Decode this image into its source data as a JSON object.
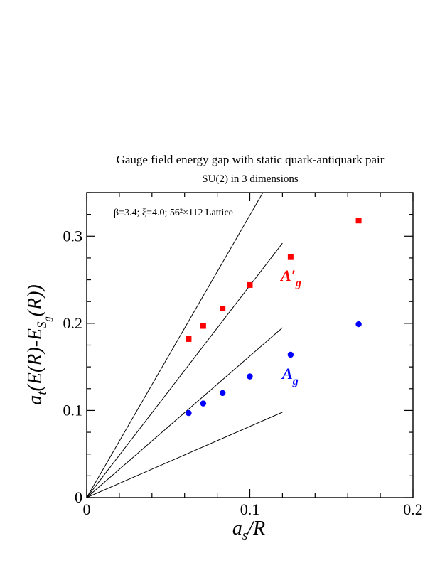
{
  "chart_data": {
    "type": "scatter",
    "title": "Gauge field energy gap with static quark-antiquark pair",
    "subtitle": "SU(2) in 3 dimensions",
    "annotation": "β=3.4;  ξ=4.0; 56²×112 Lattice",
    "xlabel": "a_s/R",
    "ylabel": "a_t(E(R)-E_{S_g}(R))",
    "xlim": [
      0,
      0.2
    ],
    "ylim": [
      0,
      0.35
    ],
    "x_ticks": [
      "0",
      "0.1",
      "0.2"
    ],
    "x_tick_values": [
      0,
      0.1,
      0.2
    ],
    "y_ticks": [
      "0",
      "0.1",
      "0.2",
      "0.3"
    ],
    "y_tick_values": [
      0,
      0.1,
      0.2,
      0.3
    ],
    "grid": false,
    "series": [
      {
        "name": "A′_g",
        "label": "A′",
        "subscript": "g",
        "color": "#ff0000",
        "marker": "square",
        "points": [
          [
            0.0625,
            0.182
          ],
          [
            0.0714,
            0.197
          ],
          [
            0.0833,
            0.217
          ],
          [
            0.1,
            0.244
          ],
          [
            0.125,
            0.276
          ],
          [
            0.1667,
            0.318
          ]
        ]
      },
      {
        "name": "A_g",
        "label": "A",
        "subscript": "g",
        "color": "#0000ff",
        "marker": "circle",
        "points": [
          [
            0.0625,
            0.097
          ],
          [
            0.0714,
            0.108
          ],
          [
            0.0833,
            0.12
          ],
          [
            0.1,
            0.139
          ],
          [
            0.125,
            0.164
          ],
          [
            0.1667,
            0.199
          ]
        ]
      }
    ],
    "reference_lines": [
      {
        "x": [
          0,
          0.108
        ],
        "y": [
          0,
          0.35
        ]
      },
      {
        "x": [
          0,
          0.12
        ],
        "y": [
          0,
          0.292
        ]
      },
      {
        "x": [
          0,
          0.12
        ],
        "y": [
          0,
          0.195
        ]
      },
      {
        "x": [
          0,
          0.12
        ],
        "y": [
          0,
          0.098
        ]
      }
    ]
  }
}
